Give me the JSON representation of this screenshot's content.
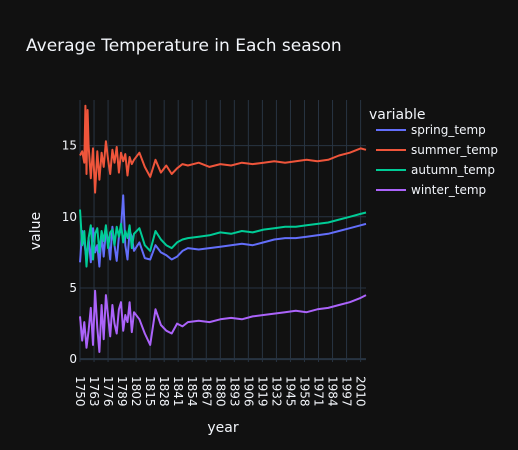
{
  "chart_data": {
    "type": "line",
    "title": "Average Temperature in Each season",
    "xlabel": "year",
    "ylabel": "value",
    "xlim": [
      1750,
      2015
    ],
    "ylim": [
      -0.2,
      18.2
    ],
    "x_ticks": [
      1750,
      1763,
      1776,
      1789,
      1802,
      1815,
      1828,
      1841,
      1854,
      1867,
      1880,
      1893,
      1906,
      1919,
      1932,
      1945,
      1958,
      1971,
      1984,
      1997,
      2010
    ],
    "y_ticks": [
      0,
      5,
      10,
      15
    ],
    "grid": true,
    "legend": {
      "title": "variable",
      "position": "top-right"
    },
    "series": [
      {
        "name": "spring_temp",
        "color": "#636efa",
        "x": [
          1750,
          1752,
          1754,
          1756,
          1758,
          1760,
          1762,
          1764,
          1766,
          1768,
          1770,
          1772,
          1774,
          1776,
          1778,
          1780,
          1782,
          1784,
          1786,
          1788,
          1790,
          1792,
          1794,
          1796,
          1798,
          1800,
          1805,
          1810,
          1815,
          1820,
          1825,
          1830,
          1835,
          1840,
          1845,
          1850,
          1860,
          1870,
          1880,
          1890,
          1900,
          1910,
          1920,
          1930,
          1940,
          1950,
          1960,
          1970,
          1980,
          1990,
          2000,
          2010,
          2015
        ],
        "y": [
          6.8,
          9.0,
          8.2,
          7.0,
          8.5,
          6.8,
          9.2,
          7.5,
          8.0,
          6.5,
          8.8,
          7.2,
          9.0,
          8.4,
          7.0,
          9.3,
          8.0,
          6.9,
          8.6,
          9.2,
          11.5,
          8.0,
          7.0,
          9.0,
          8.6,
          7.6,
          8.2,
          7.1,
          7.0,
          8.0,
          7.5,
          7.3,
          7.0,
          7.2,
          7.6,
          7.8,
          7.7,
          7.8,
          7.9,
          8.0,
          8.1,
          8.0,
          8.2,
          8.4,
          8.5,
          8.5,
          8.6,
          8.7,
          8.8,
          9.0,
          9.2,
          9.4,
          9.5
        ]
      },
      {
        "name": "summer_temp",
        "color": "#ef553b",
        "x": [
          1750,
          1752,
          1754,
          1755,
          1756,
          1757,
          1758,
          1760,
          1762,
          1764,
          1766,
          1768,
          1770,
          1772,
          1774,
          1776,
          1778,
          1780,
          1782,
          1784,
          1786,
          1788,
          1790,
          1792,
          1794,
          1796,
          1798,
          1800,
          1805,
          1810,
          1815,
          1820,
          1825,
          1830,
          1835,
          1840,
          1845,
          1850,
          1860,
          1870,
          1880,
          1890,
          1900,
          1910,
          1920,
          1930,
          1940,
          1950,
          1960,
          1970,
          1980,
          1990,
          2000,
          2010,
          2015
        ],
        "y": [
          14.3,
          14.6,
          13.8,
          17.8,
          13.0,
          17.5,
          15.0,
          12.7,
          14.8,
          11.7,
          14.6,
          12.6,
          14.5,
          13.5,
          15.3,
          14.0,
          13.0,
          14.7,
          13.8,
          14.9,
          13.1,
          14.5,
          13.9,
          14.4,
          12.9,
          14.2,
          13.7,
          14.0,
          14.5,
          13.5,
          12.8,
          14.0,
          13.1,
          13.6,
          13.0,
          13.4,
          13.7,
          13.6,
          13.8,
          13.5,
          13.7,
          13.6,
          13.8,
          13.7,
          13.8,
          13.9,
          13.8,
          13.9,
          14.0,
          13.9,
          14.0,
          14.3,
          14.5,
          14.8,
          14.7
        ]
      },
      {
        "name": "autumn_temp",
        "color": "#00cc96",
        "x": [
          1750,
          1752,
          1754,
          1756,
          1758,
          1760,
          1762,
          1764,
          1766,
          1768,
          1770,
          1772,
          1774,
          1776,
          1778,
          1780,
          1782,
          1784,
          1786,
          1788,
          1790,
          1792,
          1794,
          1796,
          1798,
          1800,
          1805,
          1810,
          1815,
          1820,
          1825,
          1830,
          1835,
          1840,
          1845,
          1850,
          1860,
          1870,
          1880,
          1890,
          1900,
          1910,
          1920,
          1930,
          1940,
          1950,
          1960,
          1970,
          1980,
          1990,
          2000,
          2010,
          2015
        ],
        "y": [
          10.5,
          8.0,
          9.0,
          6.5,
          8.5,
          9.4,
          7.0,
          8.8,
          9.2,
          7.5,
          9.0,
          8.3,
          9.4,
          7.8,
          8.9,
          9.1,
          8.0,
          9.3,
          8.6,
          9.5,
          8.2,
          9.0,
          8.5,
          9.4,
          7.8,
          8.8,
          9.2,
          8.0,
          7.6,
          9.0,
          8.4,
          8.0,
          7.8,
          8.2,
          8.4,
          8.5,
          8.6,
          8.7,
          8.9,
          8.8,
          9.0,
          8.9,
          9.1,
          9.2,
          9.3,
          9.3,
          9.4,
          9.5,
          9.6,
          9.8,
          10.0,
          10.2,
          10.3
        ]
      },
      {
        "name": "winter_temp",
        "color": "#ab63fa",
        "x": [
          1750,
          1752,
          1754,
          1756,
          1758,
          1760,
          1762,
          1764,
          1766,
          1768,
          1770,
          1772,
          1774,
          1776,
          1778,
          1780,
          1782,
          1784,
          1786,
          1788,
          1790,
          1792,
          1794,
          1796,
          1798,
          1800,
          1805,
          1810,
          1815,
          1820,
          1825,
          1830,
          1835,
          1840,
          1845,
          1850,
          1860,
          1870,
          1880,
          1890,
          1900,
          1910,
          1920,
          1930,
          1940,
          1950,
          1960,
          1970,
          1980,
          1990,
          2000,
          2010,
          2015
        ],
        "y": [
          3.0,
          1.3,
          2.6,
          0.8,
          2.0,
          3.6,
          1.0,
          4.8,
          2.2,
          0.5,
          3.8,
          1.4,
          4.5,
          3.0,
          1.6,
          3.8,
          2.5,
          1.8,
          3.5,
          4.0,
          2.0,
          3.1,
          2.6,
          4.0,
          1.9,
          3.3,
          2.8,
          1.8,
          1.0,
          3.5,
          2.4,
          2.0,
          1.8,
          2.5,
          2.3,
          2.6,
          2.7,
          2.6,
          2.8,
          2.9,
          2.8,
          3.0,
          3.1,
          3.2,
          3.3,
          3.4,
          3.3,
          3.5,
          3.6,
          3.8,
          4.0,
          4.3,
          4.5
        ]
      }
    ]
  }
}
